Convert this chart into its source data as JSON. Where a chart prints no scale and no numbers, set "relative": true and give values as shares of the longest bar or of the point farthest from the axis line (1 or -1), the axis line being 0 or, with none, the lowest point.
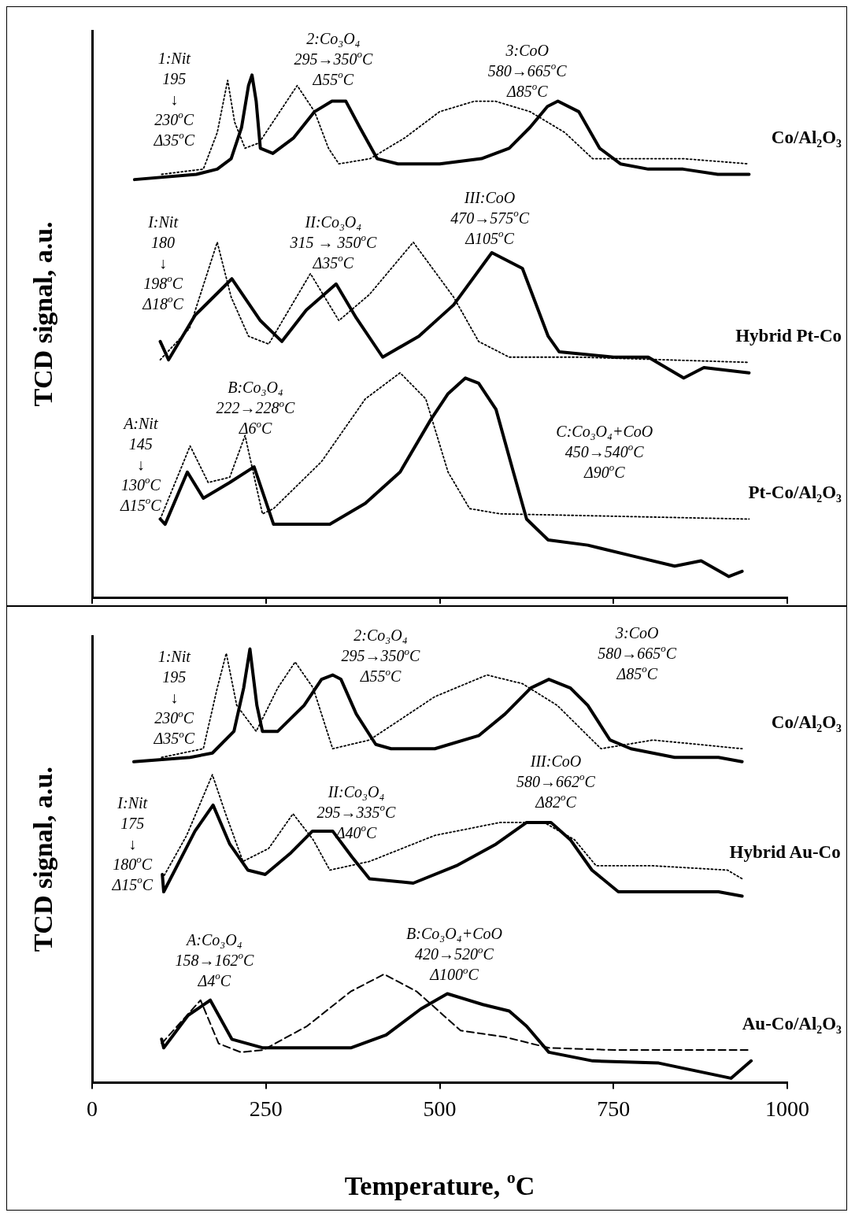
{
  "chart_data": [
    {
      "type": "line",
      "relative": true,
      "xlim": [
        0,
        1000
      ],
      "xticks": [
        0,
        250,
        500,
        750,
        1000
      ],
      "tick_labels": false,
      "ylabel": "TCD signal, a.u.",
      "series": [
        {
          "name": "Co/Al₂O₃",
          "color": "#000000",
          "line_style": "solid",
          "x": [
            61,
            150,
            180,
            200,
            215,
            225,
            230,
            236,
            242,
            260,
            290,
            320,
            345,
            365,
            385,
            410,
            440,
            500,
            560,
            600,
            630,
            655,
            670,
            700,
            730,
            760,
            800,
            850,
            900,
            945
          ],
          "values": [
            0.8,
            0.81,
            0.82,
            0.84,
            0.9,
            0.98,
            1.0,
            0.95,
            0.86,
            0.85,
            0.88,
            0.93,
            0.95,
            0.95,
            0.9,
            0.84,
            0.83,
            0.83,
            0.84,
            0.86,
            0.9,
            0.94,
            0.95,
            0.93,
            0.86,
            0.83,
            0.82,
            0.82,
            0.81,
            0.81
          ]
        },
        {
          "color": "#000000",
          "line_style": "dotted",
          "x": [
            100,
            160,
            180,
            195,
            205,
            220,
            240,
            270,
            295,
            320,
            340,
            355,
            400,
            450,
            500,
            550,
            580,
            630,
            680,
            720,
            760,
            850,
            945
          ],
          "values": [
            0.81,
            0.82,
            0.89,
            0.99,
            0.91,
            0.86,
            0.87,
            0.93,
            0.98,
            0.93,
            0.86,
            0.83,
            0.84,
            0.88,
            0.93,
            0.95,
            0.95,
            0.93,
            0.89,
            0.84,
            0.84,
            0.84,
            0.83
          ]
        },
        {
          "name": "Hybrid Pt-Co",
          "color": "#000000",
          "line_style": "solid",
          "x": [
            98,
            110,
            148,
            201,
            242,
            273,
            308,
            351,
            380,
            418,
            470,
            520,
            575,
            619,
            656,
            672,
            750,
            800,
            851,
            880,
            945
          ],
          "values": [
            0.49,
            0.455,
            0.54,
            0.61,
            0.53,
            0.49,
            0.55,
            0.6,
            0.535,
            0.46,
            0.5,
            0.56,
            0.66,
            0.63,
            0.5,
            0.47,
            0.46,
            0.46,
            0.42,
            0.44,
            0.43
          ]
        },
        {
          "color": "#000000",
          "line_style": "dotted",
          "x": [
            98,
            140,
            180,
            200,
            225,
            254,
            314,
            355,
            399,
            462,
            520,
            556,
            600,
            700,
            945
          ],
          "values": [
            0.455,
            0.515,
            0.68,
            0.575,
            0.5,
            0.485,
            0.62,
            0.53,
            0.58,
            0.68,
            0.575,
            0.49,
            0.46,
            0.46,
            0.45
          ]
        },
        {
          "name": "Pt-Co/Al₂O₃",
          "color": "#000000",
          "line_style": "solid",
          "x": [
            98,
            105,
            137,
            160,
            198,
            233,
            261,
            305,
            342,
            393,
            443,
            487,
            512,
            537,
            556,
            581,
            606,
            625,
            656,
            713,
            775,
            838,
            876,
            916,
            935
          ],
          "values": [
            0.15,
            0.14,
            0.24,
            0.19,
            0.22,
            0.25,
            0.14,
            0.14,
            0.14,
            0.18,
            0.24,
            0.34,
            0.39,
            0.42,
            0.41,
            0.36,
            0.24,
            0.15,
            0.11,
            0.1,
            0.08,
            0.06,
            0.07,
            0.04,
            0.05
          ]
        },
        {
          "color": "#000000",
          "line_style": "dotted",
          "x": [
            98,
            141,
            167,
            198,
            220,
            245,
            261,
            330,
            393,
            443,
            480,
            512,
            543,
            587,
            945
          ],
          "values": [
            0.15,
            0.29,
            0.22,
            0.23,
            0.31,
            0.16,
            0.17,
            0.26,
            0.38,
            0.43,
            0.38,
            0.24,
            0.17,
            0.16,
            0.15
          ]
        }
      ],
      "annotations": [
        "1:Nit\n195\n↓\n230$^{o}$C\nΔ35$^{o}$C",
        "2:Co₃O₄\n295→350$^{o}$C\nΔ55$^{o}$C",
        "3:CoO\n580→665$^{o}$C\nΔ85$^{o}$C",
        "I:Nit\n180\n↓\n198$^{o}$C\nΔ18$^{o}$C",
        "II:Co₃O₄\n315 → 350$^{o}$C\nΔ35$^{o}$C",
        "III:CoO\n470→575$^{o}$C\nΔ105$^{o}$C",
        "A:Nit\n145\n↓\n130$^{o}$C\nΔ15$^{o}$C",
        "B:Co₃O₄\n222→228$^{o}$C\nΔ6$^{o}$C",
        "C:Co₃O₄+CoO\n450→540$^{o}$C\nΔ90$^{o}$C"
      ]
    },
    {
      "type": "line",
      "relative": true,
      "xlim": [
        0,
        1000
      ],
      "xticks": [
        0,
        250,
        500,
        750,
        1000
      ],
      "tick_labels": "x",
      "ylabel": "TCD signal, a.u.",
      "xlabel": "Temperature, $^{o}$C",
      "series": [
        {
          "name": "Co/Al₂O₃",
          "color": "#000000",
          "line_style": "solid",
          "x": [
            60,
            141,
            173,
            204,
            218,
            227,
            237,
            245,
            267,
            305,
            330,
            346,
            358,
            380,
            408,
            430,
            493,
            556,
            594,
            631,
            657,
            688,
            713,
            745,
            775,
            838,
            901,
            935
          ],
          "values": [
            0.74,
            0.75,
            0.76,
            0.81,
            0.91,
            1.0,
            0.87,
            0.81,
            0.81,
            0.87,
            0.93,
            0.94,
            0.93,
            0.85,
            0.78,
            0.77,
            0.77,
            0.8,
            0.85,
            0.91,
            0.93,
            0.91,
            0.87,
            0.79,
            0.77,
            0.75,
            0.75,
            0.74
          ]
        },
        {
          "color": "#000000",
          "line_style": "dotted",
          "x": [
            100,
            160,
            180,
            193,
            208,
            236,
            267,
            292,
            318,
            346,
            399,
            493,
            568,
            619,
            669,
            732,
            807,
            935
          ],
          "values": [
            0.75,
            0.77,
            0.91,
            0.99,
            0.87,
            0.81,
            0.91,
            0.97,
            0.91,
            0.77,
            0.79,
            0.89,
            0.94,
            0.92,
            0.87,
            0.77,
            0.79,
            0.77
          ]
        },
        {
          "name": "Hybrid Au-Co",
          "color": "#000000",
          "line_style": "solid",
          "x": [
            101,
            103,
            148,
            174,
            198,
            224,
            249,
            286,
            317,
            346,
            374,
            399,
            462,
            524,
            581,
            625,
            660,
            688,
            719,
            757,
            838,
            901,
            935
          ],
          "values": [
            0.48,
            0.44,
            0.58,
            0.64,
            0.55,
            0.49,
            0.48,
            0.53,
            0.58,
            0.58,
            0.52,
            0.47,
            0.46,
            0.5,
            0.55,
            0.6,
            0.6,
            0.56,
            0.49,
            0.44,
            0.44,
            0.44,
            0.43
          ]
        },
        {
          "color": "#000000",
          "line_style": "dotted",
          "x": [
            101,
            136,
            173,
            192,
            217,
            254,
            289,
            318,
            342,
            399,
            493,
            587,
            650,
            694,
            725,
            807,
            914,
            935
          ],
          "values": [
            0.47,
            0.57,
            0.71,
            0.62,
            0.51,
            0.54,
            0.62,
            0.56,
            0.49,
            0.51,
            0.57,
            0.6,
            0.6,
            0.56,
            0.5,
            0.5,
            0.49,
            0.47
          ]
        },
        {
          "name": "Au-Co/Al₂O₃",
          "color": "#000000",
          "line_style": "solid",
          "x": [
            100,
            103,
            138,
            170,
            201,
            246,
            372,
            423,
            473,
            511,
            562,
            600,
            625,
            657,
            720,
            815,
            919,
            948
          ],
          "values": [
            0.1,
            0.08,
            0.155,
            0.19,
            0.1,
            0.08,
            0.08,
            0.11,
            0.17,
            0.205,
            0.18,
            0.165,
            0.13,
            0.07,
            0.05,
            0.045,
            0.01,
            0.05
          ]
        },
        {
          "color": "#000000",
          "line_style": "dashed",
          "x": [
            100,
            156,
            182,
            214,
            246,
            309,
            372,
            420,
            467,
            530,
            594,
            657,
            752,
            948
          ],
          "values": [
            0.09,
            0.19,
            0.09,
            0.07,
            0.075,
            0.13,
            0.21,
            0.25,
            0.21,
            0.12,
            0.105,
            0.08,
            0.075,
            0.075
          ]
        }
      ],
      "annotations": [
        "1:Nit\n195\n↓\n230$^{o}$C\nΔ35$^{o}$C",
        "2:Co₃O₄\n295→350$^{o}$C\nΔ55$^{o}$C",
        "3:CoO\n580→665$^{o}$C\nΔ85$^{o}$C",
        "I:Nit\n175\n↓\n180$^{o}$C\nΔ15$^{o}$C",
        "II:Co₃O₄\n295→335$^{o}$C\nΔ40$^{o}$C",
        "III:CoO\n580→662$^{o}$C\nΔ82$^{o}$C",
        "A:Co₃O₄\n158→162$^{o}$C\nΔ4$^{o}$C",
        "B:Co₃O₄+CoO\n420→520$^{o}$C\nΔ100$^{o}$C"
      ]
    }
  ]
}
